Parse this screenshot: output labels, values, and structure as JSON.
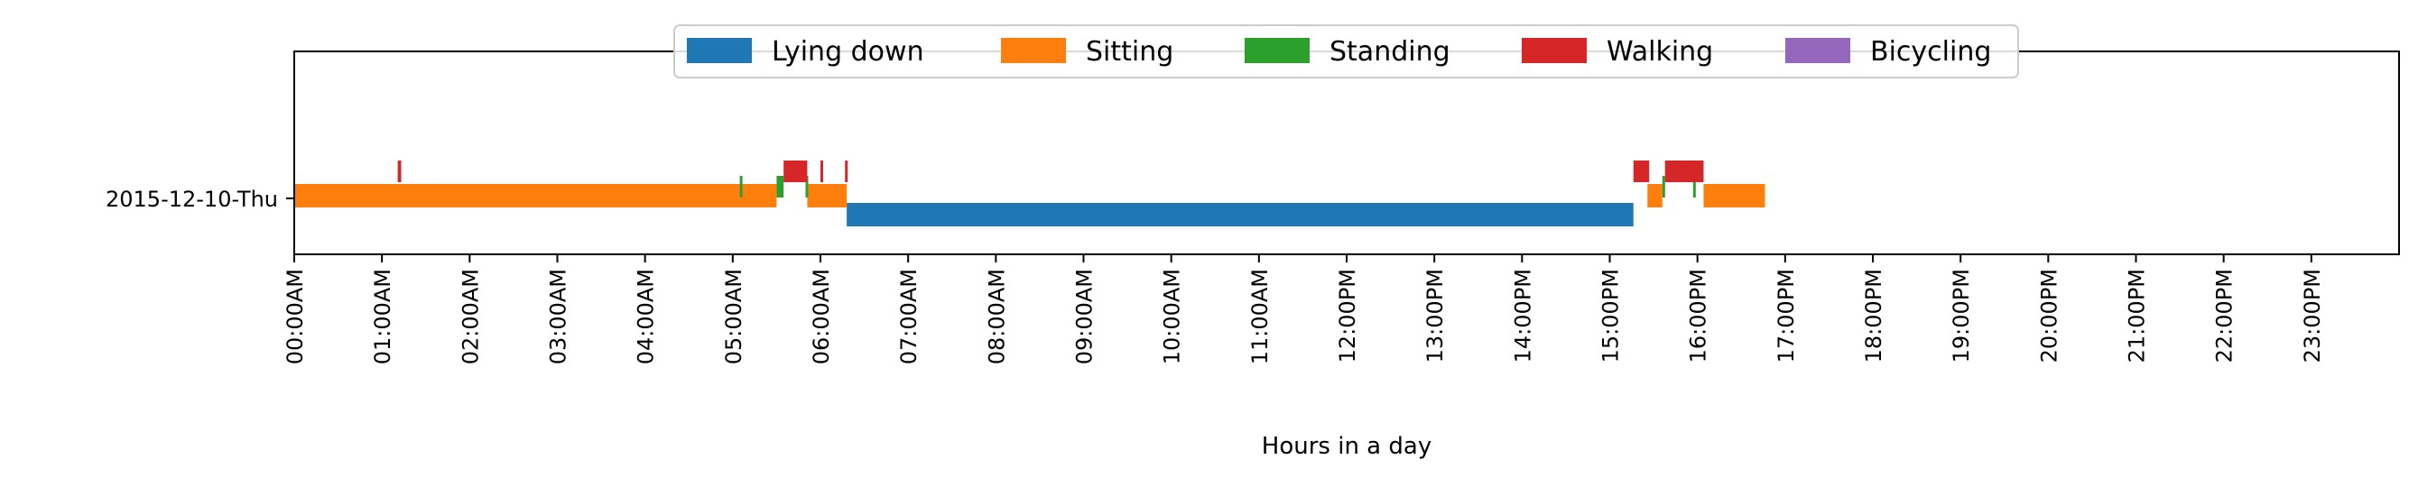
{
  "chart_data": {
    "type": "timeline",
    "xlabel": "Hours in a day",
    "ylabel": "",
    "xlim": [
      0,
      24
    ],
    "x_ticks": [
      "00:00AM",
      "01:00AM",
      "02:00AM",
      "03:00AM",
      "04:00AM",
      "05:00AM",
      "06:00AM",
      "07:00AM",
      "08:00AM",
      "09:00AM",
      "10:00AM",
      "11:00AM",
      "12:00PM",
      "13:00PM",
      "14:00PM",
      "15:00PM",
      "16:00PM",
      "17:00PM",
      "18:00PM",
      "19:00PM",
      "20:00PM",
      "21:00PM",
      "22:00PM",
      "23:00PM"
    ],
    "categories": [
      "2015-12-10-Thu"
    ],
    "legend_position": "top-center",
    "grid": false,
    "series": [
      {
        "name": "Lying down",
        "color": "#1f77b4",
        "intervals": [
          [
            6.3,
            15.27
          ]
        ]
      },
      {
        "name": "Sitting",
        "color": "#ff7f0e",
        "intervals": [
          [
            0.0,
            5.5
          ],
          [
            5.85,
            6.3
          ],
          [
            15.43,
            15.6
          ],
          [
            16.07,
            16.77
          ]
        ]
      },
      {
        "name": "Standing",
        "color": "#2ca02c",
        "intervals": [
          [
            5.08,
            5.11
          ],
          [
            5.5,
            5.58
          ],
          [
            5.83,
            5.86
          ],
          [
            15.6,
            15.63
          ],
          [
            15.95,
            15.98
          ]
        ]
      },
      {
        "name": "Walking",
        "color": "#d62728",
        "intervals": [
          [
            1.18,
            1.22
          ],
          [
            5.58,
            5.85
          ],
          [
            6.0,
            6.03
          ],
          [
            6.28,
            6.31
          ],
          [
            15.27,
            15.45
          ],
          [
            15.63,
            16.07
          ]
        ]
      },
      {
        "name": "Bicycling",
        "color": "#9467bd",
        "intervals": []
      }
    ]
  }
}
